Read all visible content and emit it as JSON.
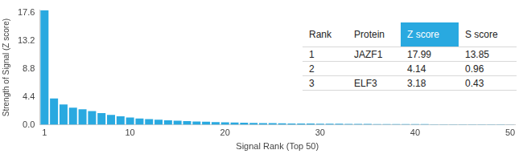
{
  "chart_data": {
    "type": "bar",
    "x_label": "Signal Rank (Top 50)",
    "y_label": "Strength of Signal (Z score)",
    "categories": [
      "1",
      null,
      null,
      null,
      null,
      null,
      null,
      null,
      null,
      "10",
      null,
      null,
      null,
      null,
      null,
      null,
      null,
      null,
      null,
      "20",
      null,
      null,
      null,
      null,
      null,
      null,
      null,
      null,
      null,
      "30",
      null,
      null,
      null,
      null,
      null,
      null,
      null,
      null,
      null,
      "40",
      null,
      null,
      null,
      null,
      null,
      null,
      null,
      null,
      null,
      "50"
    ],
    "values": [
      17.99,
      4.14,
      3.18,
      2.7,
      2.45,
      2.15,
      1.85,
      1.55,
      1.35,
      1.15,
      1.0,
      0.9,
      0.8,
      0.72,
      0.65,
      0.58,
      0.52,
      0.47,
      0.43,
      0.39,
      0.35,
      0.32,
      0.29,
      0.27,
      0.25,
      0.23,
      0.21,
      0.2,
      0.19,
      0.18,
      0.17,
      0.16,
      0.15,
      0.14,
      0.13,
      0.12,
      0.12,
      0.11,
      0.11,
      0.1,
      0.1,
      0.09,
      0.09,
      0.08,
      0.08,
      0.07,
      0.07,
      0.06,
      0.06,
      0.05
    ],
    "color": "#29a9e0",
    "ylim": [
      0,
      18
    ],
    "yticks": [
      {
        "value": 0,
        "label": "0.0"
      },
      4.4,
      8.8,
      13.2,
      17.6
    ],
    "grid": false
  },
  "table": {
    "columns": [
      "Rank",
      "Protein",
      "Z score",
      "S score"
    ],
    "rows": [
      [
        1,
        "JAZF1",
        17.99,
        13.85
      ],
      [
        2,
        null,
        4.14,
        0.96
      ],
      [
        3,
        "ELF3",
        3.18,
        0.43
      ]
    ]
  }
}
